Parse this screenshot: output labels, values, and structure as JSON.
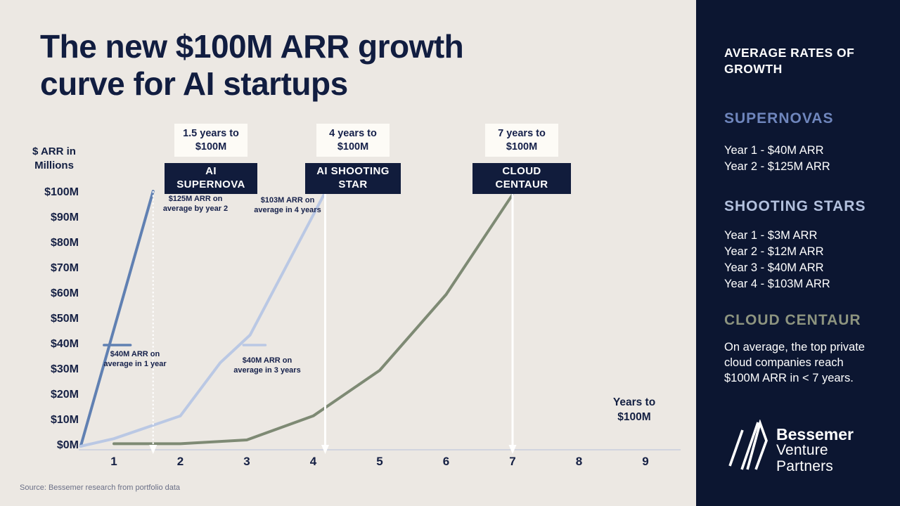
{
  "header": {
    "title_lines": [
      "The new $100M ARR growth",
      "curve for AI startups"
    ]
  },
  "source": "Source: Bessemer research from portfolio data",
  "chart": {
    "y_axis_label": "$ ARR in Millions",
    "x_axis_label": "Years to $100M",
    "milestone_labels": [
      {
        "duration": "1.5 years to $100M",
        "name": "AI SUPERNOVA"
      },
      {
        "duration": "4 years to $100M",
        "name": "AI SHOOTING STAR"
      },
      {
        "duration": "7 years to $100M",
        "name": "CLOUD CENTAUR"
      }
    ],
    "annotations": [
      "$125M ARR on average by year 2",
      "$103M ARR on average in 4 years",
      "$40M ARR on average in 1 year",
      "$40M ARR on average in 3 years"
    ]
  },
  "chart_data": {
    "type": "line",
    "title": "The new $100M ARR growth curve for AI startups",
    "xlabel": "Years to $100M",
    "ylabel": "$ ARR in Millions",
    "xlim": [
      0.5,
      9.5
    ],
    "ylim": [
      0,
      100
    ],
    "grid": false,
    "x_ticks": [
      1,
      2,
      3,
      4,
      5,
      6,
      7,
      8,
      9
    ],
    "y_ticks": [
      0,
      10,
      20,
      30,
      40,
      50,
      60,
      70,
      80,
      90,
      100
    ],
    "y_tick_labels": [
      "$0M",
      "$10M",
      "$20M",
      "$30M",
      "$40M",
      "$50M",
      "$60M",
      "$70M",
      "$80M",
      "$90M",
      "$100M"
    ],
    "series": [
      {
        "name": "AI Supernova",
        "color": "#6080b2",
        "years_to_100m": 1.5,
        "points": [
          [
            0.5,
            0
          ],
          [
            1.59,
            100.8
          ]
        ]
      },
      {
        "name": "AI Shooting Star",
        "color": "#bac8e4",
        "years_to_100m": 4,
        "points": [
          [
            0.5,
            0
          ],
          [
            1,
            3
          ],
          [
            2,
            12
          ],
          [
            2.6,
            33
          ],
          [
            3.05,
            44
          ],
          [
            4.18,
            100.4
          ]
        ]
      },
      {
        "name": "Cloud Centaur",
        "color": "#7e8a74",
        "years_to_100m": 7,
        "points": [
          [
            1,
            1
          ],
          [
            2,
            1
          ],
          [
            3,
            2.5
          ],
          [
            4,
            12
          ],
          [
            5,
            30
          ],
          [
            6,
            60
          ],
          [
            7,
            99.5
          ]
        ]
      }
    ],
    "value_markers": [
      {
        "series": "AI Supernova",
        "value": 40,
        "from_year": 0.85,
        "to_year": 1.25
      },
      {
        "series": "AI Shooting Star",
        "value": 40,
        "from_year": 2.95,
        "to_year": 3.28
      }
    ],
    "milestones": [
      {
        "name": "1.5-years",
        "year": 1.59,
        "style": "dotted"
      },
      {
        "name": "4-years",
        "year": 4.18,
        "style": "solid"
      },
      {
        "name": "7-years",
        "year": 7,
        "style": "solid"
      }
    ],
    "arrow_color": "#ffffff"
  },
  "sidebar": {
    "heading": "AVERAGE RATES OF GROWTH",
    "sections": [
      {
        "title": "SUPERNOVAS",
        "color": "#6f86bd",
        "items": [
          "Year 1 - $40M ARR",
          "Year 2 - $125M ARR"
        ]
      },
      {
        "title": "SHOOTING STARS",
        "color": "#b3c1de",
        "items": [
          "Year 1 - $3M ARR",
          "Year 2 - $12M ARR",
          "Year 3 - $40M ARR",
          "Year 4 - $103M ARR"
        ]
      },
      {
        "title": "CLOUD CENTAUR",
        "color": "#8d947f",
        "text": "On average, the top private cloud companies reach $100M ARR in < 7 years."
      }
    ],
    "logo": {
      "line1": "Bessemer",
      "line2": "Venture",
      "line3": "Partners"
    }
  }
}
